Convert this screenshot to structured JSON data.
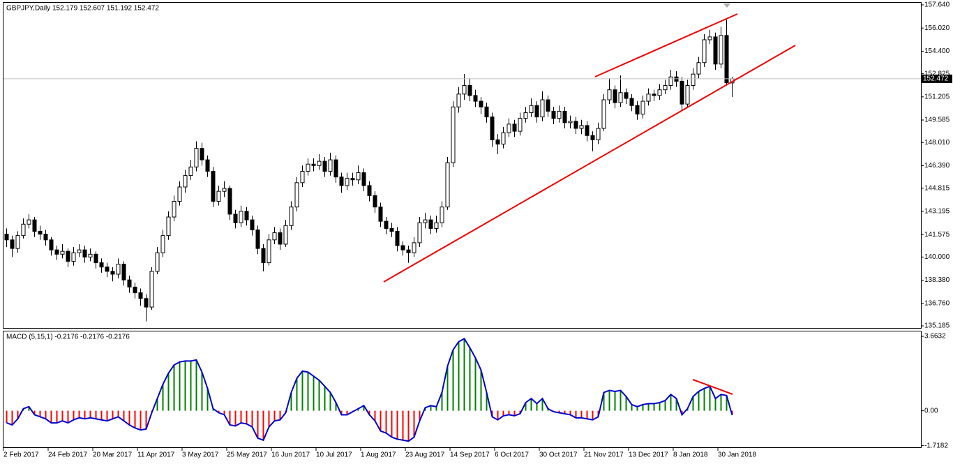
{
  "chart_data": [
    {
      "type": "candlestick",
      "title": "GBPJPY,Daily",
      "ohlc_label": "152.179 152.607 151.192 152.472",
      "categories": [
        "2 Feb 2017",
        null,
        null,
        null,
        null,
        null,
        null,
        null,
        "24 Feb 2017",
        null,
        null,
        null,
        null,
        null,
        null,
        null,
        "20 Mar 2017",
        null,
        null,
        null,
        null,
        null,
        null,
        null,
        "11 Apr 2017",
        null,
        null,
        null,
        null,
        null,
        null,
        null,
        "3 May 2017",
        null,
        null,
        null,
        null,
        null,
        null,
        null,
        "25 May 2017",
        null,
        null,
        null,
        null,
        null,
        null,
        null,
        "16 Jun 2017",
        null,
        null,
        null,
        null,
        null,
        null,
        null,
        "10 Jul 2017",
        null,
        null,
        null,
        null,
        null,
        null,
        null,
        "1 Aug 2017",
        null,
        null,
        null,
        null,
        null,
        null,
        null,
        "23 Aug 2017",
        null,
        null,
        null,
        null,
        null,
        null,
        null,
        "14 Sep 2017",
        null,
        null,
        null,
        null,
        null,
        null,
        null,
        "6 Oct 2017",
        null,
        null,
        null,
        null,
        null,
        null,
        null,
        "30 Oct 2017",
        null,
        null,
        null,
        null,
        null,
        null,
        null,
        "21 Nov 2017",
        null,
        null,
        null,
        null,
        null,
        null,
        null,
        "13 Dec 2017",
        null,
        null,
        null,
        null,
        null,
        null,
        null,
        "8 Jan 2018",
        null,
        null,
        null,
        null,
        null,
        null,
        null,
        "30 Jan 2018",
        null,
        null
      ],
      "open": [
        141.6,
        141.2,
        140.6,
        141.5,
        142.3,
        142.6,
        141.8,
        141.6,
        141.2,
        140.5,
        140.2,
        140.4,
        139.7,
        140.3,
        140.5,
        140.0,
        140.2,
        139.6,
        139.3,
        139.0,
        138.8,
        139.5,
        138.4,
        137.9,
        137.5,
        137.1,
        136.5,
        139.0,
        140.3,
        141.5,
        142.8,
        143.9,
        144.9,
        145.7,
        146.3,
        147.6,
        146.8,
        146.0,
        143.9,
        144.6,
        144.8,
        143.0,
        142.4,
        143.2,
        142.6,
        141.9,
        140.6,
        139.6,
        141.2,
        141.7,
        140.9,
        142.2,
        143.5,
        145.2,
        146.0,
        146.5,
        146.4,
        146.7,
        146.0,
        146.8,
        145.6,
        145.0,
        145.5,
        145.4,
        145.9,
        145.0,
        144.3,
        143.5,
        142.5,
        142.0,
        141.8,
        140.8,
        140.5,
        140.3,
        141.0,
        142.4,
        142.6,
        142.0,
        142.4,
        143.5,
        146.6,
        150.5,
        151.4,
        152.0,
        151.3,
        150.9,
        150.5,
        149.8,
        148.2,
        147.9,
        148.7,
        149.3,
        148.8,
        149.7,
        150.1,
        150.6,
        149.8,
        151.0,
        150.2,
        149.7,
        150.2,
        149.4,
        149.5,
        149.0,
        149.2,
        148.5,
        148.2,
        149.0,
        151.0,
        151.7,
        150.8,
        151.5,
        151.1,
        150.6,
        150.0,
        150.9,
        151.4,
        151.3,
        151.7,
        152.0,
        152.6,
        152.3,
        150.7,
        152.0,
        152.8,
        153.6,
        155.2,
        155.4,
        153.5,
        155.5,
        152.18
      ],
      "high": [
        142.0,
        141.5,
        141.8,
        142.7,
        143.0,
        142.8,
        142.2,
        141.9,
        141.4,
        140.8,
        140.9,
        140.6,
        140.7,
        140.9,
        140.8,
        140.6,
        140.4,
        139.9,
        139.6,
        139.3,
        139.9,
        139.7,
        138.7,
        138.2,
        137.8,
        137.4,
        139.3,
        140.7,
        141.9,
        143.2,
        144.3,
        145.3,
        146.1,
        146.8,
        148.1,
        148.0,
        147.1,
        146.3,
        145.0,
        145.3,
        145.0,
        143.3,
        143.6,
        143.5,
        142.9,
        142.2,
        140.9,
        141.6,
        142.1,
        142.0,
        142.6,
        143.9,
        145.6,
        146.4,
        146.9,
        146.9,
        147.2,
        147.0,
        147.3,
        147.1,
        145.9,
        145.9,
        145.9,
        146.4,
        146.2,
        145.3,
        144.6,
        143.8,
        142.8,
        142.4,
        142.1,
        141.1,
        140.8,
        141.4,
        142.8,
        143.1,
        142.9,
        142.9,
        143.9,
        147.0,
        150.9,
        151.9,
        152.8,
        152.5,
        151.7,
        151.2,
        150.8,
        150.1,
        148.6,
        149.1,
        149.7,
        149.6,
        150.1,
        150.5,
        151.1,
        150.9,
        151.6,
        151.3,
        150.5,
        150.6,
        150.5,
        149.9,
        149.8,
        149.6,
        149.5,
        148.8,
        149.4,
        151.4,
        152.5,
        152.0,
        152.7,
        151.8,
        151.4,
        150.9,
        151.3,
        151.8,
        151.7,
        152.1,
        152.4,
        153.1,
        153.0,
        152.6,
        152.4,
        153.2,
        154.0,
        155.6,
        155.9,
        155.7,
        156.1,
        156.6,
        152.61
      ],
      "low": [
        140.7,
        140.0,
        140.3,
        141.3,
        142.0,
        141.4,
        141.2,
        140.8,
        140.1,
        139.8,
        139.9,
        139.3,
        139.4,
        140.0,
        139.6,
        139.7,
        139.2,
        138.9,
        138.6,
        138.3,
        138.5,
        138.0,
        137.5,
        137.1,
        136.6,
        135.5,
        136.3,
        138.8,
        140.0,
        141.2,
        142.5,
        143.6,
        144.5,
        145.4,
        146.0,
        146.4,
        145.6,
        143.5,
        143.6,
        144.2,
        142.6,
        142.0,
        142.1,
        142.2,
        141.5,
        140.2,
        139.0,
        139.4,
        140.9,
        140.5,
        140.7,
        141.9,
        143.2,
        144.9,
        145.7,
        146.0,
        146.1,
        145.6,
        145.7,
        145.2,
        144.5,
        144.7,
        145.0,
        145.1,
        144.6,
        143.9,
        143.1,
        142.1,
        141.6,
        141.4,
        140.4,
        140.1,
        139.6,
        140.0,
        140.7,
        142.0,
        141.6,
        141.7,
        142.1,
        143.3,
        146.3,
        150.1,
        151.0,
        150.9,
        150.5,
        150.0,
        149.4,
        147.7,
        147.2,
        147.6,
        148.4,
        148.4,
        148.5,
        149.4,
        149.8,
        149.4,
        149.5,
        149.8,
        149.3,
        149.4,
        149.0,
        149.0,
        148.6,
        148.6,
        148.1,
        147.4,
        147.9,
        148.8,
        150.7,
        150.4,
        150.5,
        150.7,
        150.2,
        149.6,
        149.7,
        150.6,
        150.9,
        151.0,
        151.4,
        151.7,
        151.9,
        150.3,
        150.5,
        151.7,
        152.5,
        153.3,
        154.9,
        153.1,
        153.2,
        152.0,
        151.19
      ],
      "close": [
        141.2,
        140.6,
        141.5,
        142.3,
        142.6,
        141.8,
        141.6,
        141.2,
        140.5,
        140.2,
        140.4,
        139.7,
        140.3,
        140.5,
        140.0,
        140.2,
        139.6,
        139.3,
        139.0,
        138.8,
        139.5,
        138.4,
        137.9,
        137.5,
        137.1,
        136.5,
        139.0,
        140.3,
        141.5,
        142.8,
        143.9,
        144.9,
        145.7,
        146.3,
        147.6,
        146.8,
        146.0,
        143.9,
        144.6,
        144.8,
        143.0,
        142.4,
        143.2,
        142.6,
        141.9,
        140.6,
        139.6,
        141.2,
        141.7,
        140.9,
        142.2,
        143.5,
        145.2,
        146.0,
        146.5,
        146.4,
        146.7,
        146.0,
        146.8,
        145.6,
        145.0,
        145.5,
        145.4,
        145.9,
        145.0,
        144.3,
        143.5,
        142.5,
        142.0,
        141.8,
        140.8,
        140.5,
        140.3,
        141.0,
        142.4,
        142.6,
        142.0,
        142.4,
        143.5,
        146.6,
        150.5,
        151.4,
        152.0,
        151.3,
        150.9,
        150.5,
        149.8,
        148.2,
        147.9,
        148.7,
        149.3,
        148.8,
        149.7,
        150.1,
        150.6,
        149.8,
        151.0,
        150.2,
        149.7,
        150.2,
        149.4,
        149.5,
        149.0,
        149.2,
        148.5,
        148.2,
        149.0,
        151.0,
        151.7,
        150.8,
        151.5,
        151.1,
        150.6,
        150.0,
        150.9,
        151.4,
        151.3,
        151.7,
        152.0,
        152.6,
        152.3,
        150.7,
        152.0,
        152.8,
        153.6,
        155.2,
        155.4,
        153.5,
        155.5,
        152.2,
        152.472
      ],
      "up_color": "#ffffff",
      "down_color": "#000000",
      "last_price": 152.472,
      "ylim": [
        135.04,
        157.835
      ],
      "yticks": [
        {
          "value": 157.64,
          "label": "157.640"
        },
        {
          "value": 156.02,
          "label": "156.020"
        },
        {
          "value": 154.4,
          "label": "154.400"
        },
        {
          "value": 152.825,
          "label": "152.825"
        },
        {
          "value": 151.205,
          "label": "151.205"
        },
        {
          "value": 149.585,
          "label": "149.585"
        },
        {
          "value": 148.01,
          "label": "148.010"
        },
        {
          "value": 146.39,
          "label": "146.390"
        },
        {
          "value": 144.815,
          "label": "144.815"
        },
        {
          "value": 143.195,
          "label": "143.195"
        },
        {
          "value": 141.575,
          "label": "141.575"
        },
        {
          "value": 140,
          "label": "140.000"
        },
        {
          "value": 138.38,
          "label": "138.380"
        },
        {
          "value": 136.76,
          "label": "136.760"
        },
        {
          "value": 135.185,
          "label": "135.185"
        }
      ]
    },
    {
      "type": "bar",
      "title": "MACD (5,15,1) -0.2176 -0.2176 -0.2176",
      "values": [
        -0.6,
        -0.7,
        -0.4,
        0.1,
        0.2,
        -0.2,
        -0.3,
        -0.4,
        -0.6,
        -0.6,
        -0.5,
        -0.6,
        -0.45,
        -0.35,
        -0.4,
        -0.35,
        -0.4,
        -0.45,
        -0.5,
        -0.4,
        -0.3,
        -0.5,
        -0.7,
        -0.85,
        -0.95,
        -0.9,
        -0.1,
        0.6,
        1.3,
        1.85,
        2.25,
        2.4,
        2.45,
        2.45,
        2.5,
        1.9,
        1.1,
        0.1,
        -0.1,
        -0.2,
        -0.7,
        -0.75,
        -0.6,
        -0.65,
        -0.8,
        -1.35,
        -1.45,
        -0.8,
        -0.5,
        -0.45,
        -0.1,
        0.9,
        1.6,
        1.95,
        1.9,
        1.7,
        1.5,
        1.2,
        0.9,
        0.4,
        -0.2,
        -0.2,
        -0.05,
        0.1,
        0.25,
        -0.2,
        -0.5,
        -1.0,
        -1.1,
        -1.3,
        -1.4,
        -1.45,
        -1.5,
        -1.3,
        -0.5,
        0.15,
        0.25,
        0.2,
        0.9,
        2.2,
        3.0,
        3.4,
        3.55,
        3.1,
        2.6,
        2.0,
        0.9,
        -0.3,
        -0.45,
        -0.25,
        -0.2,
        -0.25,
        -0.15,
        0.4,
        0.6,
        0.35,
        0.6,
        0.1,
        -0.05,
        -0.1,
        -0.15,
        -0.2,
        -0.35,
        -0.35,
        -0.4,
        -0.45,
        -0.3,
        0.9,
        1.0,
        0.95,
        1.0,
        0.7,
        0.3,
        0.2,
        0.3,
        0.35,
        0.35,
        0.4,
        0.5,
        0.8,
        0.6,
        -0.2,
        0.1,
        0.7,
        0.95,
        1.1,
        1.2,
        0.6,
        0.8,
        0.75,
        -0.2176
      ],
      "up_color": "#008000",
      "down_color": "#ff0000",
      "line_color": "#0000cd",
      "ylim": [
        -1.8,
        3.94
      ],
      "yticks": [
        3.6632,
        {
          "value": 0,
          "label": "0.00"
        },
        -1.7182
      ]
    }
  ]
}
